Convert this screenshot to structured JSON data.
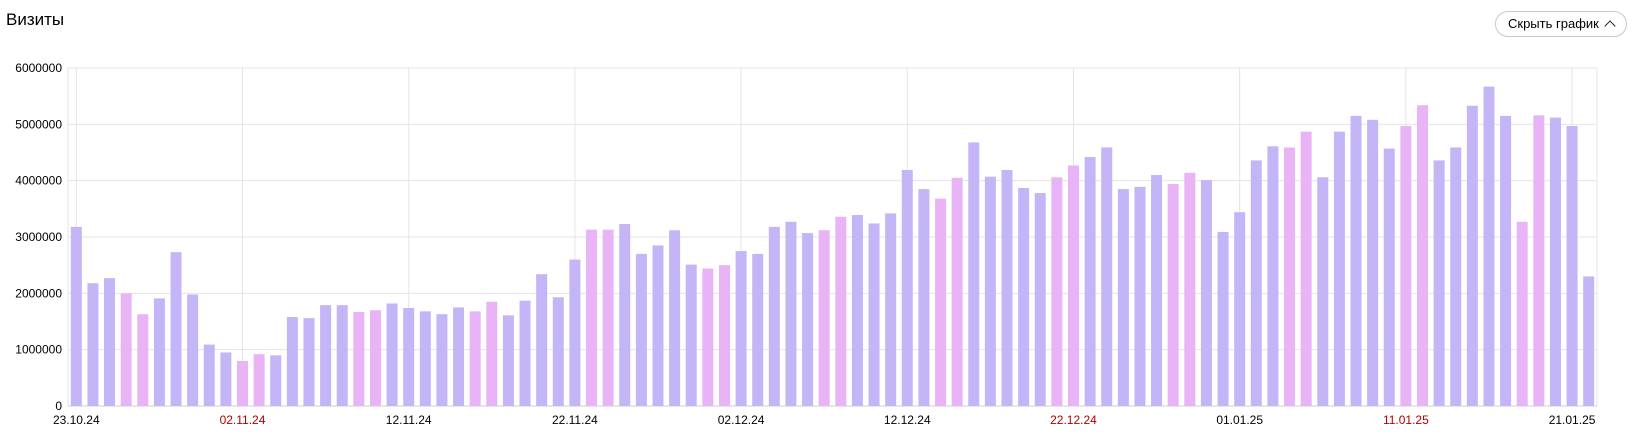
{
  "header": {
    "title": "Визиты",
    "toggle_label": "Скрыть график",
    "toggle_icon": "chevron-up-icon"
  },
  "colors": {
    "weekday": "#c4b5f7",
    "weekend": "#e9b4f5",
    "grid": "#e4e4e4",
    "axis_text": "#000000",
    "holiday_text": "#b00000"
  },
  "chart_data": {
    "type": "bar",
    "title": "",
    "xlabel": "",
    "ylabel": "",
    "ylim": [
      0,
      6000000
    ],
    "yticks": [
      "0",
      "1000000",
      "2000000",
      "3000000",
      "4000000",
      "5000000",
      "6000000"
    ],
    "x_start": "23.10.24",
    "xtick_labels": [
      {
        "index": 0,
        "label": "23.10.24",
        "holiday": false
      },
      {
        "index": 10,
        "label": "02.11.24",
        "holiday": true
      },
      {
        "index": 20,
        "label": "12.11.24",
        "holiday": false
      },
      {
        "index": 30,
        "label": "22.11.24",
        "holiday": false
      },
      {
        "index": 40,
        "label": "02.12.24",
        "holiday": false
      },
      {
        "index": 50,
        "label": "12.12.24",
        "holiday": false
      },
      {
        "index": 60,
        "label": "22.12.24",
        "holiday": true
      },
      {
        "index": 70,
        "label": "01.01.25",
        "holiday": false
      },
      {
        "index": 80,
        "label": "11.01.25",
        "holiday": true
      },
      {
        "index": 90,
        "label": "21.01.25",
        "holiday": false
      }
    ],
    "values": [
      3180000,
      2180000,
      2270000,
      2000000,
      1630000,
      1910000,
      2730000,
      1980000,
      1090000,
      950000,
      800000,
      920000,
      900000,
      1580000,
      1560000,
      1790000,
      1790000,
      1670000,
      1700000,
      1820000,
      1740000,
      1680000,
      1630000,
      1750000,
      1680000,
      1850000,
      1610000,
      1870000,
      2340000,
      1930000,
      2600000,
      3130000,
      3130000,
      3230000,
      2700000,
      2850000,
      3120000,
      2510000,
      2440000,
      2500000,
      2750000,
      2700000,
      3180000,
      3270000,
      3070000,
      3120000,
      3360000,
      3390000,
      3240000,
      3420000,
      4190000,
      3850000,
      3680000,
      4050000,
      4680000,
      4070000,
      4190000,
      3870000,
      3780000,
      4060000,
      4270000,
      4420000,
      4590000,
      3850000,
      3890000,
      4100000,
      3940000,
      4140000,
      4010000,
      3090000,
      3440000,
      4360000,
      4610000,
      4590000,
      4870000,
      4060000,
      4870000,
      5150000,
      5080000,
      4570000,
      4970000,
      5340000,
      4360000,
      4590000,
      5330000,
      5670000,
      5150000,
      3270000,
      5160000,
      5120000,
      4970000,
      2300000
    ],
    "weekend_flags": [
      0,
      0,
      0,
      1,
      1,
      0,
      0,
      0,
      0,
      0,
      1,
      1,
      0,
      0,
      0,
      0,
      0,
      1,
      1,
      0,
      0,
      0,
      0,
      0,
      1,
      1,
      0,
      0,
      0,
      0,
      0,
      1,
      1,
      0,
      0,
      0,
      0,
      0,
      1,
      1,
      0,
      0,
      0,
      0,
      0,
      1,
      1,
      0,
      0,
      0,
      0,
      0,
      1,
      1,
      0,
      0,
      0,
      0,
      0,
      1,
      1,
      0,
      0,
      0,
      0,
      0,
      1,
      1,
      0,
      0,
      0,
      0,
      0,
      1,
      1,
      0,
      0,
      0,
      0,
      0,
      1,
      1,
      0,
      0,
      0,
      0,
      0,
      1,
      1,
      0,
      0,
      0
    ],
    "grid": true,
    "legend": "none"
  }
}
